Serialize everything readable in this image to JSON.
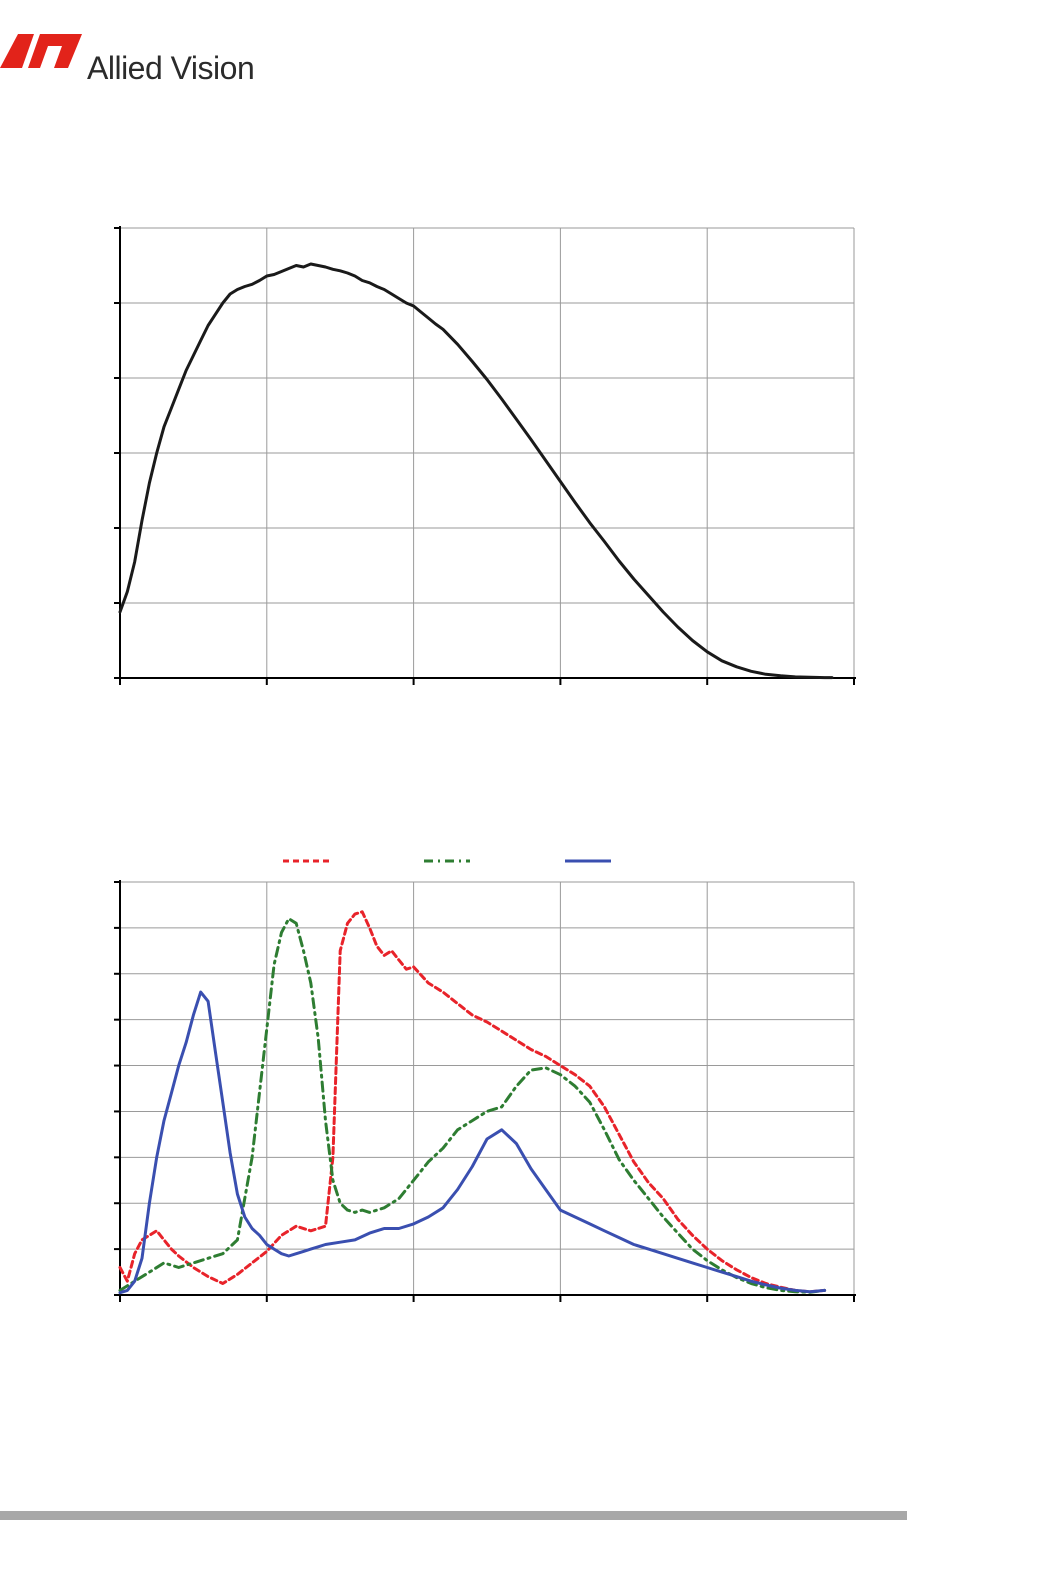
{
  "header": {
    "brand_name": "Allied Vision",
    "logo_color": "#e2231a"
  },
  "chart_data": [
    {
      "type": "line",
      "title": "",
      "xlabel": "",
      "ylabel": "",
      "xlim": [
        0,
        5
      ],
      "ylim": [
        0,
        6
      ],
      "x_gridlines": 5,
      "y_gridlines": 6,
      "grid": true,
      "legend": "none",
      "series": [
        {
          "color": "#1a1a1a",
          "style": "solid",
          "x": [
            0,
            0.05,
            0.1,
            0.15,
            0.2,
            0.25,
            0.3,
            0.35,
            0.4,
            0.45,
            0.5,
            0.55,
            0.6,
            0.65,
            0.7,
            0.75,
            0.8,
            0.85,
            0.9,
            0.95,
            1.0,
            1.05,
            1.1,
            1.15,
            1.2,
            1.25,
            1.3,
            1.35,
            1.4,
            1.45,
            1.5,
            1.55,
            1.6,
            1.65,
            1.7,
            1.75,
            1.8,
            1.85,
            1.9,
            1.95,
            2.0,
            2.05,
            2.1,
            2.15,
            2.2,
            2.3,
            2.4,
            2.5,
            2.6,
            2.7,
            2.8,
            2.9,
            3.0,
            3.1,
            3.2,
            3.3,
            3.4,
            3.5,
            3.6,
            3.7,
            3.8,
            3.9,
            4.0,
            4.1,
            4.2,
            4.3,
            4.4,
            4.5,
            4.6,
            4.7,
            4.8,
            4.85
          ],
          "y": [
            0.88,
            1.15,
            1.55,
            2.1,
            2.6,
            3.0,
            3.35,
            3.6,
            3.85,
            4.1,
            4.3,
            4.5,
            4.7,
            4.85,
            5.0,
            5.12,
            5.18,
            5.22,
            5.25,
            5.3,
            5.36,
            5.38,
            5.42,
            5.46,
            5.5,
            5.48,
            5.52,
            5.5,
            5.48,
            5.45,
            5.43,
            5.4,
            5.36,
            5.3,
            5.27,
            5.22,
            5.18,
            5.12,
            5.06,
            5.0,
            4.96,
            4.88,
            4.8,
            4.72,
            4.65,
            4.45,
            4.22,
            3.98,
            3.72,
            3.45,
            3.18,
            2.9,
            2.62,
            2.34,
            2.07,
            1.82,
            1.56,
            1.32,
            1.1,
            0.88,
            0.68,
            0.5,
            0.35,
            0.23,
            0.15,
            0.09,
            0.05,
            0.03,
            0.015,
            0.01,
            0.005,
            0.005
          ]
        }
      ]
    },
    {
      "type": "line",
      "title": "",
      "xlabel": "",
      "ylabel": "",
      "xlim": [
        0,
        5
      ],
      "ylim": [
        0,
        9
      ],
      "x_gridlines": 5,
      "y_gridlines": 9,
      "grid": true,
      "legend": "top",
      "series": [
        {
          "color": "#e8232a",
          "style": "dashed",
          "x": [
            0,
            0.05,
            0.1,
            0.15,
            0.2,
            0.25,
            0.3,
            0.35,
            0.4,
            0.5,
            0.6,
            0.7,
            0.8,
            0.9,
            1.0,
            1.1,
            1.2,
            1.3,
            1.4,
            1.45,
            1.5,
            1.55,
            1.6,
            1.65,
            1.7,
            1.75,
            1.8,
            1.85,
            1.9,
            1.95,
            2.0,
            2.1,
            2.2,
            2.3,
            2.4,
            2.5,
            2.6,
            2.7,
            2.8,
            2.9,
            3.0,
            3.1,
            3.2,
            3.3,
            3.4,
            3.5,
            3.6,
            3.7,
            3.8,
            3.9,
            4.0,
            4.1,
            4.2,
            4.3,
            4.4,
            4.5,
            4.6,
            4.7,
            4.8
          ],
          "y": [
            0.6,
            0.3,
            0.9,
            1.2,
            1.3,
            1.4,
            1.2,
            1.0,
            0.85,
            0.6,
            0.4,
            0.25,
            0.45,
            0.7,
            0.95,
            1.3,
            1.5,
            1.4,
            1.5,
            3.0,
            7.5,
            8.1,
            8.3,
            8.35,
            8.0,
            7.6,
            7.4,
            7.5,
            7.3,
            7.1,
            7.15,
            6.8,
            6.6,
            6.35,
            6.1,
            5.95,
            5.75,
            5.55,
            5.35,
            5.2,
            5.0,
            4.8,
            4.55,
            4.1,
            3.5,
            2.9,
            2.45,
            2.1,
            1.65,
            1.3,
            1.0,
            0.75,
            0.55,
            0.38,
            0.25,
            0.17,
            0.1,
            0.07,
            0.1
          ]
        },
        {
          "color": "#2e7d32",
          "style": "dashdot",
          "x": [
            0,
            0.1,
            0.2,
            0.3,
            0.4,
            0.5,
            0.6,
            0.7,
            0.8,
            0.9,
            1.0,
            1.05,
            1.1,
            1.15,
            1.2,
            1.25,
            1.3,
            1.35,
            1.4,
            1.45,
            1.5,
            1.55,
            1.6,
            1.65,
            1.7,
            1.8,
            1.9,
            2.0,
            2.1,
            2.2,
            2.3,
            2.4,
            2.5,
            2.6,
            2.7,
            2.8,
            2.9,
            3.0,
            3.1,
            3.2,
            3.3,
            3.4,
            3.5,
            3.6,
            3.7,
            3.8,
            3.9,
            4.0,
            4.1,
            4.2,
            4.3,
            4.4,
            4.5,
            4.6,
            4.7,
            4.8
          ],
          "y": [
            0.1,
            0.3,
            0.5,
            0.7,
            0.6,
            0.7,
            0.8,
            0.9,
            1.2,
            3.0,
            5.8,
            7.2,
            7.9,
            8.2,
            8.1,
            7.5,
            6.8,
            5.6,
            3.8,
            2.5,
            2.0,
            1.85,
            1.8,
            1.85,
            1.8,
            1.9,
            2.1,
            2.5,
            2.9,
            3.2,
            3.6,
            3.8,
            4.0,
            4.1,
            4.55,
            4.9,
            4.95,
            4.8,
            4.55,
            4.2,
            3.6,
            2.95,
            2.5,
            2.1,
            1.7,
            1.35,
            1.0,
            0.75,
            0.55,
            0.38,
            0.25,
            0.16,
            0.1,
            0.07,
            0.06,
            0.1
          ]
        },
        {
          "color": "#3a4fb0",
          "style": "solid",
          "x": [
            0,
            0.05,
            0.1,
            0.15,
            0.2,
            0.25,
            0.3,
            0.35,
            0.4,
            0.45,
            0.5,
            0.55,
            0.6,
            0.65,
            0.7,
            0.75,
            0.8,
            0.85,
            0.9,
            0.95,
            1.0,
            1.05,
            1.1,
            1.15,
            1.2,
            1.25,
            1.3,
            1.35,
            1.4,
            1.5,
            1.6,
            1.7,
            1.8,
            1.9,
            2.0,
            2.1,
            2.2,
            2.3,
            2.4,
            2.5,
            2.6,
            2.7,
            2.8,
            2.9,
            3.0,
            3.1,
            3.2,
            3.3,
            3.4,
            3.5,
            3.6,
            3.7,
            3.8,
            3.9,
            4.0,
            4.1,
            4.2,
            4.3,
            4.4,
            4.5,
            4.6,
            4.7,
            4.8
          ],
          "y": [
            0.05,
            0.1,
            0.3,
            0.8,
            2.0,
            3.0,
            3.8,
            4.4,
            5.0,
            5.5,
            6.1,
            6.6,
            6.4,
            5.3,
            4.2,
            3.1,
            2.2,
            1.7,
            1.45,
            1.3,
            1.1,
            1.0,
            0.9,
            0.85,
            0.9,
            0.95,
            1.0,
            1.05,
            1.1,
            1.15,
            1.2,
            1.35,
            1.45,
            1.45,
            1.55,
            1.7,
            1.9,
            2.3,
            2.8,
            3.4,
            3.6,
            3.3,
            2.75,
            2.3,
            1.85,
            1.7,
            1.55,
            1.4,
            1.25,
            1.1,
            1.0,
            0.9,
            0.8,
            0.7,
            0.6,
            0.5,
            0.4,
            0.3,
            0.22,
            0.15,
            0.1,
            0.07,
            0.1
          ]
        }
      ]
    }
  ]
}
